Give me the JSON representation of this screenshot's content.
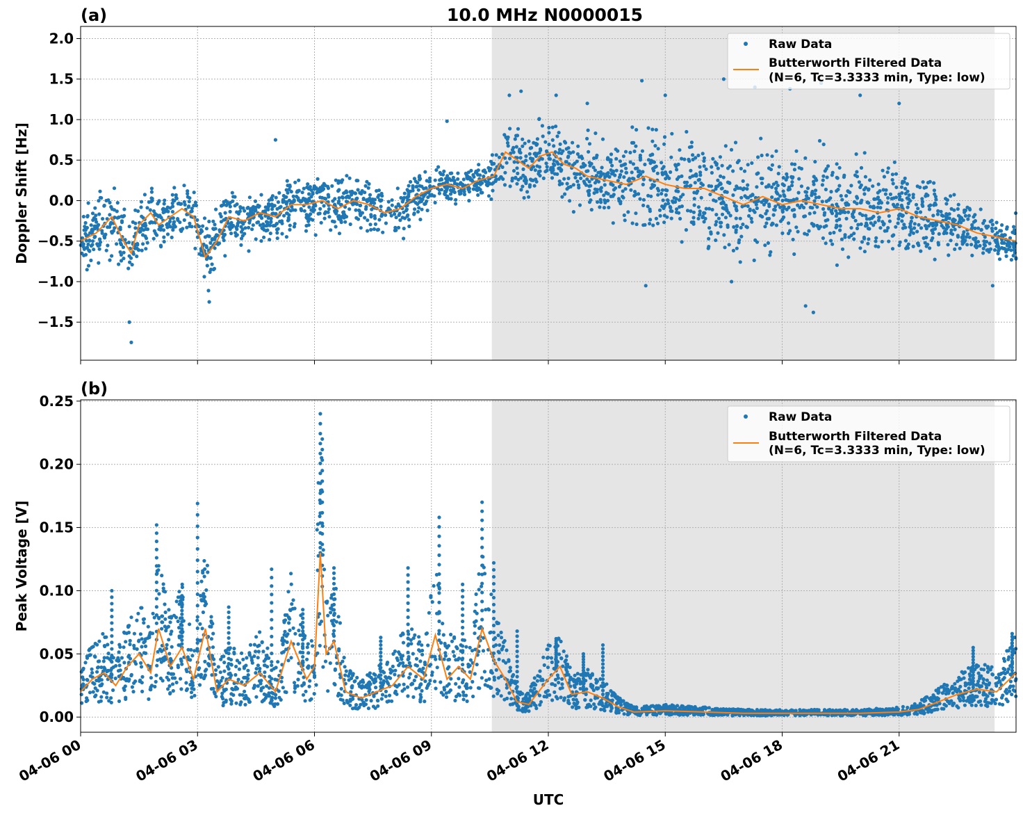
{
  "figure": {
    "title": "10.0 MHz N0000015",
    "xlabel": "UTC",
    "x_ticks": [
      "04-06 00",
      "04-06 03",
      "04-06 06",
      "04-06 09",
      "04-06 12",
      "04-06 15",
      "04-06 18",
      "04-06 21"
    ]
  },
  "colors": {
    "raw": "#1f77b4",
    "filtered": "#ff7f0e",
    "shade": "#e5e5e5",
    "grid": "#b0b0b0"
  },
  "chart_data": [
    {
      "type": "scatter",
      "panel_label": "(a)",
      "ylabel": "Doppler Shift [Hz]",
      "xlim_hours": [
        0,
        24
      ],
      "ylim": [
        -1.97,
        2.15
      ],
      "y_ticks": [
        2.0,
        1.5,
        1.0,
        0.5,
        0.0,
        -0.5,
        -1.0,
        -1.5
      ],
      "y_tick_labels": [
        "2.0",
        "1.5",
        "1.0",
        "0.5",
        "0.0",
        "−0.5",
        "−1.0",
        "−1.5"
      ],
      "shaded_hours": [
        10.55,
        23.45
      ],
      "legend": {
        "placement": "upper right",
        "entries": [
          "Raw Data",
          "Butterworth Filtered Data",
          "(N=6, Tc=3.3333 min, Type: low)"
        ]
      },
      "series": [
        {
          "name": "Butterworth Filtered Data",
          "x_hours": [
            0,
            0.4,
            0.8,
            1.1,
            1.3,
            1.5,
            1.8,
            2.0,
            2.3,
            2.6,
            2.9,
            3.2,
            3.5,
            3.8,
            4.2,
            4.6,
            5.0,
            5.4,
            5.8,
            6.2,
            6.6,
            7.0,
            7.4,
            7.8,
            8.2,
            8.6,
            9.0,
            9.4,
            9.8,
            10.2,
            10.6,
            10.9,
            11.2,
            11.5,
            11.8,
            12.1,
            12.4,
            12.7,
            13.0,
            13.5,
            14.0,
            14.5,
            15.0,
            15.5,
            16.0,
            16.5,
            17.0,
            17.5,
            18.0,
            18.5,
            19.0,
            19.5,
            20.0,
            20.5,
            21.0,
            21.5,
            22.0,
            22.5,
            23.0,
            23.5,
            24.0
          ],
          "y": [
            -0.5,
            -0.4,
            -0.2,
            -0.5,
            -0.65,
            -0.3,
            -0.15,
            -0.3,
            -0.2,
            -0.1,
            -0.2,
            -0.7,
            -0.5,
            -0.2,
            -0.25,
            -0.15,
            -0.2,
            -0.05,
            -0.05,
            0.0,
            -0.1,
            0.0,
            -0.05,
            -0.15,
            -0.1,
            0.05,
            0.15,
            0.2,
            0.15,
            0.25,
            0.3,
            0.6,
            0.5,
            0.4,
            0.55,
            0.6,
            0.45,
            0.4,
            0.3,
            0.25,
            0.2,
            0.3,
            0.2,
            0.15,
            0.15,
            0.05,
            -0.05,
            0.05,
            -0.05,
            0.0,
            -0.05,
            -0.1,
            -0.1,
            -0.15,
            -0.1,
            -0.2,
            -0.25,
            -0.3,
            -0.4,
            -0.45,
            -0.5
          ]
        },
        {
          "name": "Raw Data",
          "spread_hours": [
            0,
            1,
            2,
            3,
            4,
            5,
            6,
            7,
            8,
            9,
            10,
            10.5,
            11,
            12,
            13,
            14,
            15,
            16,
            17,
            18,
            19,
            20,
            21,
            22,
            23,
            24
          ],
          "spread_halfwidth": [
            0.35,
            0.4,
            0.3,
            0.35,
            0.3,
            0.25,
            0.3,
            0.3,
            0.3,
            0.2,
            0.15,
            0.2,
            0.35,
            0.35,
            0.4,
            0.5,
            0.55,
            0.6,
            0.55,
            0.55,
            0.55,
            0.5,
            0.45,
            0.35,
            0.3,
            0.25
          ],
          "outliers": [
            {
              "x": 1.3,
              "y": -1.75
            },
            {
              "x": 1.25,
              "y": -1.5
            },
            {
              "x": 3.3,
              "y": -1.25
            },
            {
              "x": 5.0,
              "y": 0.75
            },
            {
              "x": 9.4,
              "y": 0.98
            },
            {
              "x": 11.0,
              "y": 1.3
            },
            {
              "x": 11.3,
              "y": 1.35
            },
            {
              "x": 12.2,
              "y": 1.3
            },
            {
              "x": 13.0,
              "y": 1.2
            },
            {
              "x": 14.4,
              "y": 1.48
            },
            {
              "x": 15.0,
              "y": 1.3
            },
            {
              "x": 16.5,
              "y": 1.5
            },
            {
              "x": 17.3,
              "y": 1.4
            },
            {
              "x": 18.2,
              "y": 1.38
            },
            {
              "x": 19.0,
              "y": 1.45
            },
            {
              "x": 20.0,
              "y": 1.3
            },
            {
              "x": 21.0,
              "y": 1.2
            },
            {
              "x": 18.8,
              "y": -1.38
            },
            {
              "x": 18.6,
              "y": -1.3
            },
            {
              "x": 14.5,
              "y": -1.05
            },
            {
              "x": 16.7,
              "y": -1.0
            },
            {
              "x": 23.4,
              "y": -1.05
            }
          ]
        }
      ]
    },
    {
      "type": "scatter",
      "panel_label": "(b)",
      "ylabel": "Peak Voltage [V]",
      "xlim_hours": [
        0,
        24
      ],
      "ylim": [
        -0.012,
        0.251
      ],
      "y_ticks": [
        0.25,
        0.2,
        0.15,
        0.1,
        0.05,
        0.0
      ],
      "y_tick_labels": [
        "0.25",
        "0.20",
        "0.15",
        "0.10",
        "0.05",
        "0.00"
      ],
      "shaded_hours": [
        10.55,
        23.45
      ],
      "legend": {
        "placement": "upper right",
        "entries": [
          "Raw Data",
          "Butterworth Filtered Data",
          "(N=6, Tc=3.3333 min, Type: low)"
        ]
      },
      "series": [
        {
          "name": "Butterworth Filtered Data",
          "x_hours": [
            0,
            0.3,
            0.6,
            0.9,
            1.2,
            1.5,
            1.8,
            2.0,
            2.3,
            2.6,
            2.9,
            3.2,
            3.5,
            3.8,
            4.2,
            4.6,
            5.0,
            5.4,
            5.8,
            6.0,
            6.15,
            6.3,
            6.5,
            6.8,
            7.2,
            7.6,
            8.0,
            8.4,
            8.8,
            9.1,
            9.4,
            9.7,
            10.0,
            10.3,
            10.6,
            10.9,
            11.2,
            11.5,
            12.0,
            12.3,
            12.6,
            13.0,
            13.4,
            13.8,
            14.2,
            15.0,
            16.0,
            17.0,
            18.0,
            19.0,
            20.0,
            21.0,
            21.5,
            22.0,
            22.5,
            23.0,
            23.5,
            24.0
          ],
          "y": [
            0.02,
            0.03,
            0.035,
            0.025,
            0.04,
            0.05,
            0.035,
            0.07,
            0.04,
            0.055,
            0.03,
            0.07,
            0.02,
            0.03,
            0.025,
            0.035,
            0.02,
            0.06,
            0.03,
            0.04,
            0.13,
            0.05,
            0.06,
            0.02,
            0.015,
            0.02,
            0.025,
            0.04,
            0.03,
            0.065,
            0.03,
            0.04,
            0.03,
            0.07,
            0.045,
            0.03,
            0.012,
            0.01,
            0.03,
            0.04,
            0.018,
            0.02,
            0.015,
            0.008,
            0.004,
            0.005,
            0.004,
            0.003,
            0.003,
            0.003,
            0.003,
            0.004,
            0.006,
            0.012,
            0.018,
            0.022,
            0.02,
            0.035
          ]
        },
        {
          "name": "Raw Data",
          "spikes": [
            {
              "x": 1.95,
              "y": 0.152
            },
            {
              "x": 3.0,
              "y": 0.169
            },
            {
              "x": 4.9,
              "y": 0.117
            },
            {
              "x": 6.15,
              "y": 0.24
            },
            {
              "x": 6.2,
              "y": 0.22
            },
            {
              "x": 6.5,
              "y": 0.118
            },
            {
              "x": 8.4,
              "y": 0.118
            },
            {
              "x": 9.2,
              "y": 0.158
            },
            {
              "x": 10.3,
              "y": 0.17
            },
            {
              "x": 10.6,
              "y": 0.122
            },
            {
              "x": 12.2,
              "y": 0.062
            },
            {
              "x": 13.4,
              "y": 0.057
            },
            {
              "x": 0.8,
              "y": 0.1
            },
            {
              "x": 2.6,
              "y": 0.096
            },
            {
              "x": 3.8,
              "y": 0.087
            },
            {
              "x": 5.7,
              "y": 0.085
            },
            {
              "x": 7.7,
              "y": 0.063
            },
            {
              "x": 9.8,
              "y": 0.105
            },
            {
              "x": 11.2,
              "y": 0.068
            },
            {
              "x": 12.9,
              "y": 0.05
            },
            {
              "x": 22.9,
              "y": 0.055
            },
            {
              "x": 23.9,
              "y": 0.066
            }
          ]
        }
      ]
    }
  ]
}
